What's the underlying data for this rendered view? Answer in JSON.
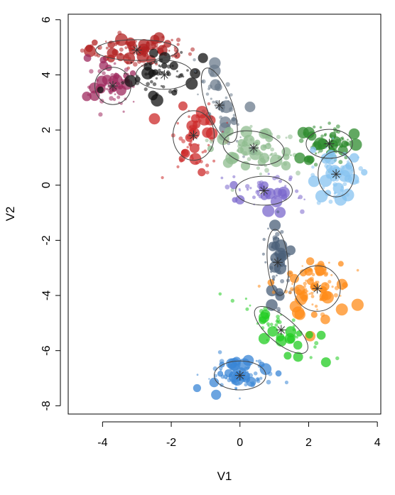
{
  "chart_data": {
    "type": "scatter",
    "title": "",
    "xlabel": "V1",
    "ylabel": "V2",
    "xlim": [
      -5,
      4.1
    ],
    "ylim": [
      -8.3,
      6.2
    ],
    "xticks": [
      -4,
      -2,
      0,
      2,
      4
    ],
    "xtick_labels": [
      "-4",
      "-2",
      "0",
      "2",
      "4"
    ],
    "yticks": [
      6,
      4,
      2,
      0,
      -2,
      -4,
      -6,
      -8
    ],
    "ytick_labels": [
      "6",
      "4",
      "2",
      "0",
      "-2",
      "-4",
      "-6",
      "-8"
    ],
    "grid": false,
    "legend": "none",
    "ellipse_color": "#444444",
    "clusters": [
      {
        "color": "#b22222",
        "center": [
          -3.0,
          4.9
        ],
        "sd": [
          0.8,
          0.25
        ],
        "angle": 0,
        "n": 90
      },
      {
        "color": "#9e2a5e",
        "center": [
          -3.7,
          3.6
        ],
        "sd": [
          0.35,
          0.45
        ],
        "angle": 0,
        "n": 60
      },
      {
        "color": "#111111",
        "center": [
          -2.2,
          4.0
        ],
        "sd": [
          0.55,
          0.35
        ],
        "angle": 0,
        "n": 60
      },
      {
        "color": "#6b7b8c",
        "center": [
          -0.6,
          2.9
        ],
        "sd": [
          0.25,
          0.95
        ],
        "angle": 20,
        "n": 60
      },
      {
        "color": "#cc2a2a",
        "center": [
          -1.35,
          1.8
        ],
        "sd": [
          0.4,
          0.6
        ],
        "angle": 0,
        "n": 60
      },
      {
        "color": "#8fbc8f",
        "center": [
          0.4,
          1.35
        ],
        "sd": [
          0.6,
          0.4
        ],
        "angle": -10,
        "n": 70
      },
      {
        "color": "#2e8b2e",
        "center": [
          2.6,
          1.5
        ],
        "sd": [
          0.45,
          0.35
        ],
        "angle": 0,
        "n": 80
      },
      {
        "color": "#87c3f0",
        "center": [
          2.8,
          0.4
        ],
        "sd": [
          0.35,
          0.55
        ],
        "angle": 0,
        "n": 60
      },
      {
        "color": "#7b68cc",
        "center": [
          0.7,
          -0.2
        ],
        "sd": [
          0.55,
          0.35
        ],
        "angle": 0,
        "n": 50
      },
      {
        "color": "#4a5f78",
        "center": [
          1.1,
          -2.8
        ],
        "sd": [
          0.2,
          0.8
        ],
        "angle": 5,
        "n": 50
      },
      {
        "color": "#ff8c1a",
        "center": [
          2.25,
          -3.75
        ],
        "sd": [
          0.45,
          0.55
        ],
        "angle": 0,
        "n": 90
      },
      {
        "color": "#22cc22",
        "center": [
          1.2,
          -5.25
        ],
        "sd": [
          0.25,
          0.8
        ],
        "angle": 50,
        "n": 50
      },
      {
        "color": "#3a86d6",
        "center": [
          0.0,
          -6.9
        ],
        "sd": [
          0.5,
          0.35
        ],
        "angle": 0,
        "n": 70
      }
    ]
  }
}
